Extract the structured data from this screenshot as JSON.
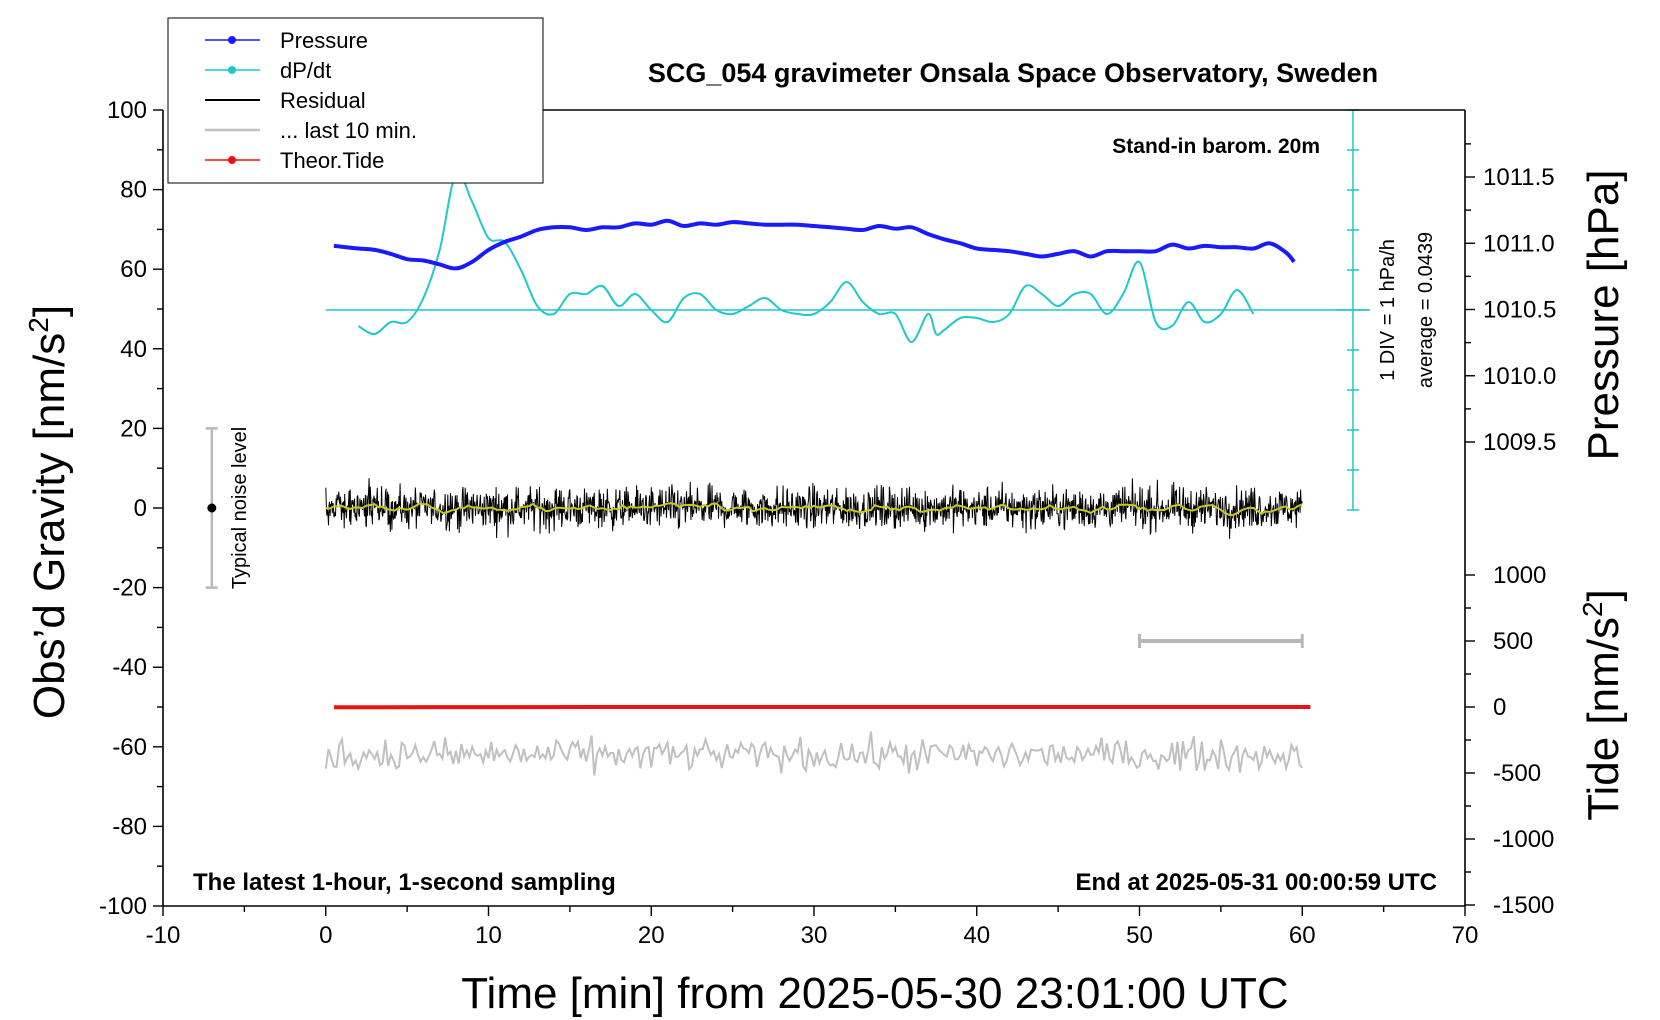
{
  "chart_data": {
    "type": "line",
    "title": "SCG_054 gravimeter Onsala Space Observatory, Sweden",
    "xlabel": "Time [min] from 2025-05-30 23:01:00 UTC",
    "ylabel_left": "Obs’d Gravity [nm/s",
    "ylabel_left_sup": "2",
    "ylabel_left_end": "]",
    "ylabel_right_pressure": "Pressure [hPa]",
    "ylabel_right_tide": "Tide [nm/s",
    "ylabel_right_tide_sup": "2",
    "ylabel_right_tide_end": "]",
    "xlim": [
      -10,
      70
    ],
    "ylim": [
      -100,
      100
    ],
    "x_ticks": [
      "-10",
      "0",
      "10",
      "20",
      "30",
      "40",
      "50",
      "60",
      "70"
    ],
    "y_ticks": [
      "100",
      "80",
      "60",
      "40",
      "20",
      "0",
      "-20",
      "-40",
      "-60",
      "-80",
      "-100"
    ],
    "pressure_ticks": [
      "1011.5",
      "1011.0",
      "1010.5",
      "1010.0",
      "1009.5"
    ],
    "tide_ticks": [
      "1000",
      "500",
      "0",
      "-500",
      "-1000",
      "-1500"
    ],
    "legend": {
      "placement": "top-left",
      "items": [
        {
          "label": "Pressure",
          "color": "#1a1aff",
          "marker": "dot"
        },
        {
          "label": "dP/dt",
          "color": "#20c8c8",
          "marker": "dot"
        },
        {
          "label": "Residual",
          "color": "#000000",
          "marker": "none"
        },
        {
          "label": "... last 10 min.",
          "color": "#c0c0c0",
          "marker": "none"
        },
        {
          "label": "Theor.Tide",
          "color": "#ee1111",
          "marker": "dot"
        }
      ]
    },
    "annotations": {
      "barometer": "Stand-in barom. 20m",
      "scale": "1 DIV = 1 hPa/h",
      "average": "average = 0.0439",
      "noise": "Typical noise level",
      "bottom_left": "The latest 1-hour, 1-second sampling",
      "bottom_right": "End at 2025-05-31 00:00:59 UTC"
    },
    "series": [
      {
        "name": "Pressure",
        "color": "#1a1aff",
        "axis": "pressure_hPa",
        "x": [
          0.5,
          2,
          3,
          4,
          5,
          6,
          7,
          8,
          9,
          10,
          11,
          12,
          13,
          14,
          15,
          16,
          17,
          18,
          19,
          20,
          21,
          22,
          23,
          24,
          25,
          26,
          27,
          28,
          29,
          30,
          31,
          32,
          33,
          34,
          35,
          36,
          37,
          38,
          39,
          40,
          41,
          42,
          43,
          44,
          45,
          46,
          47,
          48,
          49,
          50,
          51,
          52,
          53,
          54,
          55,
          56,
          57,
          58,
          59,
          59.5
        ],
        "y": [
          1010.98,
          1010.96,
          1010.95,
          1010.92,
          1010.88,
          1010.87,
          1010.84,
          1010.81,
          1010.86,
          1010.95,
          1011.01,
          1011.05,
          1011.1,
          1011.12,
          1011.12,
          1011.1,
          1011.12,
          1011.12,
          1011.15,
          1011.14,
          1011.17,
          1011.13,
          1011.15,
          1011.14,
          1011.16,
          1011.15,
          1011.14,
          1011.14,
          1011.14,
          1011.13,
          1011.12,
          1011.11,
          1011.1,
          1011.13,
          1011.11,
          1011.12,
          1011.07,
          1011.03,
          1011.0,
          1010.96,
          1010.95,
          1010.94,
          1010.92,
          1010.9,
          1010.92,
          1010.94,
          1010.9,
          1010.94,
          1010.94,
          1010.94,
          1010.94,
          1010.99,
          1010.96,
          1010.98,
          1010.97,
          1010.97,
          1010.96,
          1011.0,
          1010.93,
          1010.86
        ]
      },
      {
        "name": "dP/dt",
        "color": "#20c8c8",
        "axis": "dpdt_div",
        "x": [
          2,
          3,
          4,
          5,
          6,
          7,
          8,
          9,
          10,
          11,
          12,
          13,
          14,
          15,
          16,
          17,
          18,
          19,
          20,
          21,
          22,
          23,
          24,
          25,
          26,
          27,
          28,
          29,
          30,
          31,
          32,
          33,
          34,
          35,
          36,
          37,
          37.5,
          38,
          39,
          40,
          41,
          42,
          43,
          44,
          45,
          46,
          47,
          48,
          49,
          50,
          51,
          52,
          53,
          54,
          55,
          56,
          57
        ],
        "y": [
          -0.4,
          -0.6,
          -0.3,
          -0.3,
          0.3,
          1.5,
          3.4,
          2.7,
          1.8,
          1.7,
          1.0,
          0.1,
          -0.1,
          0.4,
          0.4,
          0.6,
          0.1,
          0.4,
          0.0,
          -0.3,
          0.3,
          0.4,
          0.0,
          -0.1,
          0.1,
          0.3,
          0.0,
          -0.1,
          -0.1,
          0.2,
          0.7,
          0.2,
          -0.1,
          -0.1,
          -0.8,
          -0.1,
          -0.6,
          -0.5,
          -0.2,
          -0.2,
          -0.3,
          -0.1,
          0.6,
          0.4,
          0.1,
          0.4,
          0.4,
          -0.1,
          0.4,
          1.2,
          -0.3,
          -0.4,
          0.2,
          -0.3,
          -0.1,
          0.5,
          -0.1
        ]
      },
      {
        "name": "Residual",
        "color": "#000000",
        "axis": "gravity",
        "x": [
          0,
          60
        ],
        "y": [
          0,
          0
        ]
      },
      {
        "name": "... last 10 min.",
        "color": "#c0c0c0",
        "axis": "gravity_offset",
        "offset": -62,
        "x": [
          0,
          60
        ],
        "y": [
          0,
          0
        ]
      },
      {
        "name": "Theor.Tide",
        "color": "#ee1111",
        "axis": "tide",
        "x": [
          0.5,
          10,
          20,
          30,
          40,
          50,
          60.5
        ],
        "y": [
          -2,
          -1,
          0,
          0,
          0,
          0,
          0
        ]
      }
    ],
    "noise_bar": {
      "x": -7,
      "y": 0,
      "range": [
        -20,
        20
      ]
    },
    "tide_window_bar": {
      "x": [
        50,
        60
      ],
      "tide": 500
    },
    "colors": {
      "pressure": "#1a1aff",
      "dpdt": "#20c8c8",
      "residual": "#000000",
      "smoothed": "#c8c820",
      "last10": "#c0c0c0",
      "tide": "#ee1111",
      "noisebar": "#b8b8b8"
    },
    "grid": false
  }
}
